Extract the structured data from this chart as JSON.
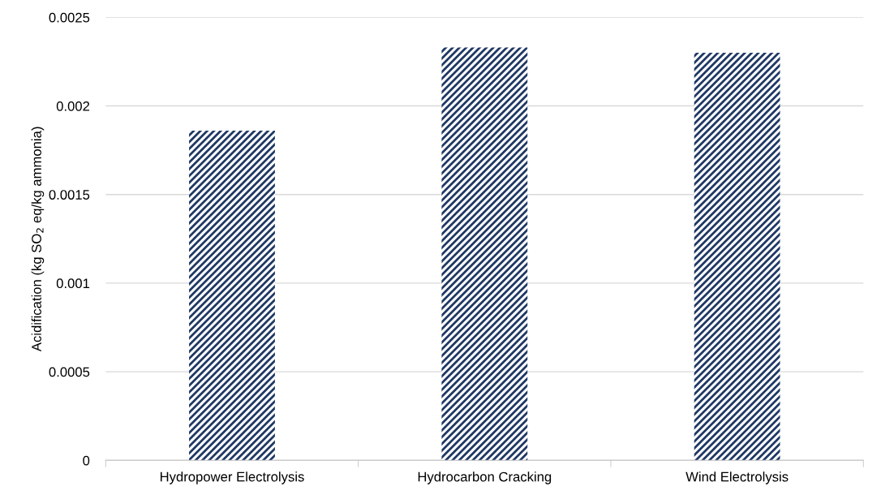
{
  "chart_data": {
    "type": "bar",
    "ylabel": "Acidification (kg SO$_{2}$ eq/kg ammonia)",
    "categories": [
      "Hydropower Electrolysis",
      "Hydrocarbon Cracking",
      "Wind Electrolysis"
    ],
    "series": [
      {
        "color": "#1f3864",
        "values": [
          0.00186,
          0.00233,
          0.0023
        ]
      }
    ],
    "ylim": [
      0,
      0.0025
    ],
    "yticks": [
      0,
      0.0005,
      0.001,
      0.0015,
      0.002,
      0.0025
    ],
    "grid": "y",
    "legend": false
  }
}
